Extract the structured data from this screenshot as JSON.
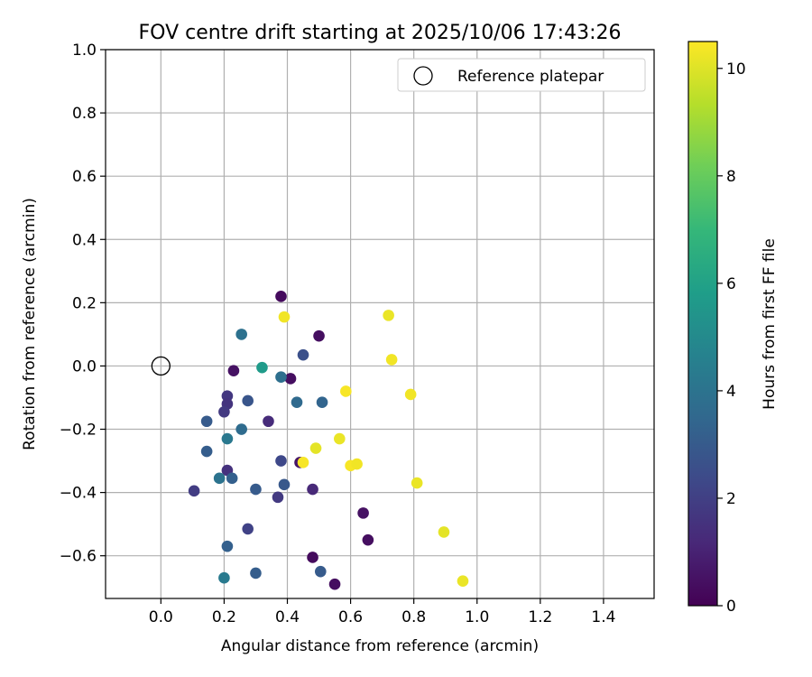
{
  "chart_data": {
    "type": "scatter",
    "title": "FOV centre drift starting at 2025/10/06 17:43:26",
    "xlabel": "Angular distance from reference (arcmin)",
    "ylabel": "Rotation from reference (arcmin)",
    "xlim": [
      -0.175,
      1.56
    ],
    "ylim": [
      -0.735,
      1.0
    ],
    "xticks": [
      0.0,
      0.2,
      0.4,
      0.6,
      0.8,
      1.0,
      1.2,
      1.4
    ],
    "yticks": [
      -0.6,
      -0.4,
      -0.2,
      0.0,
      0.2,
      0.4,
      0.6,
      0.8,
      1.0
    ],
    "xtick_labels": [
      "0.0",
      "0.2",
      "0.4",
      "0.6",
      "0.8",
      "1.0",
      "1.2",
      "1.4"
    ],
    "ytick_labels": [
      "−0.6",
      "−0.4",
      "−0.2",
      "0.0",
      "0.2",
      "0.4",
      "0.6",
      "0.8",
      "1.0"
    ],
    "grid": true,
    "legend": {
      "position": "top-right",
      "entries": [
        "Reference platepar"
      ]
    },
    "reference_point": {
      "x": 0.0,
      "y": 0.0,
      "label": "Reference platepar"
    },
    "colorbar": {
      "label": "Hours from first FF file",
      "range": [
        0,
        10.5
      ],
      "ticks": [
        0,
        2,
        4,
        6,
        8,
        10
      ],
      "tick_labels": [
        "0",
        "2",
        "4",
        "6",
        "8",
        "10"
      ],
      "colormap": "viridis",
      "colors": [
        "#440154",
        "#482878",
        "#3e4989",
        "#31688e",
        "#26828e",
        "#1f9e89",
        "#35b779",
        "#6ece58",
        "#b5de2b",
        "#fde725"
      ]
    },
    "points": [
      {
        "x": 0.38,
        "y": 0.22,
        "h": 0.3
      },
      {
        "x": 0.5,
        "y": 0.095,
        "h": 0.4
      },
      {
        "x": 0.23,
        "y": -0.015,
        "h": 0.5
      },
      {
        "x": 0.41,
        "y": -0.04,
        "h": 0.4
      },
      {
        "x": 0.44,
        "y": -0.305,
        "h": 0.6
      },
      {
        "x": 0.48,
        "y": -0.605,
        "h": 0.3
      },
      {
        "x": 0.55,
        "y": -0.69,
        "h": 0.4
      },
      {
        "x": 0.64,
        "y": -0.465,
        "h": 0.5
      },
      {
        "x": 0.655,
        "y": -0.55,
        "h": 0.4
      },
      {
        "x": 0.48,
        "y": -0.39,
        "h": 1.2
      },
      {
        "x": 0.34,
        "y": -0.175,
        "h": 1.3
      },
      {
        "x": 0.21,
        "y": -0.095,
        "h": 1.7
      },
      {
        "x": 0.21,
        "y": -0.12,
        "h": 1.6
      },
      {
        "x": 0.2,
        "y": -0.145,
        "h": 1.8
      },
      {
        "x": 0.21,
        "y": -0.33,
        "h": 1.5
      },
      {
        "x": 0.105,
        "y": -0.395,
        "h": 1.9
      },
      {
        "x": 0.37,
        "y": -0.415,
        "h": 1.8
      },
      {
        "x": 0.275,
        "y": -0.515,
        "h": 2.1
      },
      {
        "x": 0.38,
        "y": -0.3,
        "h": 2.3
      },
      {
        "x": 0.45,
        "y": 0.035,
        "h": 2.6
      },
      {
        "x": 0.275,
        "y": -0.11,
        "h": 2.8
      },
      {
        "x": 0.145,
        "y": -0.175,
        "h": 3.0
      },
      {
        "x": 0.145,
        "y": -0.27,
        "h": 3.1
      },
      {
        "x": 0.225,
        "y": -0.355,
        "h": 3.2
      },
      {
        "x": 0.3,
        "y": -0.39,
        "h": 3.0
      },
      {
        "x": 0.39,
        "y": -0.375,
        "h": 2.9
      },
      {
        "x": 0.21,
        "y": -0.57,
        "h": 3.2
      },
      {
        "x": 0.3,
        "y": -0.655,
        "h": 3.1
      },
      {
        "x": 0.505,
        "y": -0.65,
        "h": 3.0
      },
      {
        "x": 0.51,
        "y": -0.115,
        "h": 3.4
      },
      {
        "x": 0.43,
        "y": -0.115,
        "h": 3.6
      },
      {
        "x": 0.38,
        "y": -0.035,
        "h": 3.8
      },
      {
        "x": 0.255,
        "y": 0.1,
        "h": 3.9
      },
      {
        "x": 0.255,
        "y": -0.2,
        "h": 3.7
      },
      {
        "x": 0.21,
        "y": -0.23,
        "h": 4.2
      },
      {
        "x": 0.185,
        "y": -0.355,
        "h": 4.0
      },
      {
        "x": 0.2,
        "y": -0.67,
        "h": 4.3
      },
      {
        "x": 0.32,
        "y": -0.005,
        "h": 5.7
      },
      {
        "x": 0.39,
        "y": 0.155,
        "h": 10.3
      },
      {
        "x": 0.72,
        "y": 0.16,
        "h": 10.2
      },
      {
        "x": 0.73,
        "y": 0.02,
        "h": 10.3
      },
      {
        "x": 0.585,
        "y": -0.08,
        "h": 10.4
      },
      {
        "x": 0.79,
        "y": -0.09,
        "h": 10.3
      },
      {
        "x": 0.565,
        "y": -0.23,
        "h": 10.2
      },
      {
        "x": 0.49,
        "y": -0.26,
        "h": 10.1
      },
      {
        "x": 0.45,
        "y": -0.305,
        "h": 10.4
      },
      {
        "x": 0.6,
        "y": -0.315,
        "h": 10.4
      },
      {
        "x": 0.62,
        "y": -0.31,
        "h": 10.3
      },
      {
        "x": 0.81,
        "y": -0.37,
        "h": 10.2
      },
      {
        "x": 0.895,
        "y": -0.525,
        "h": 10.1
      },
      {
        "x": 0.955,
        "y": -0.68,
        "h": 10.2
      }
    ]
  }
}
